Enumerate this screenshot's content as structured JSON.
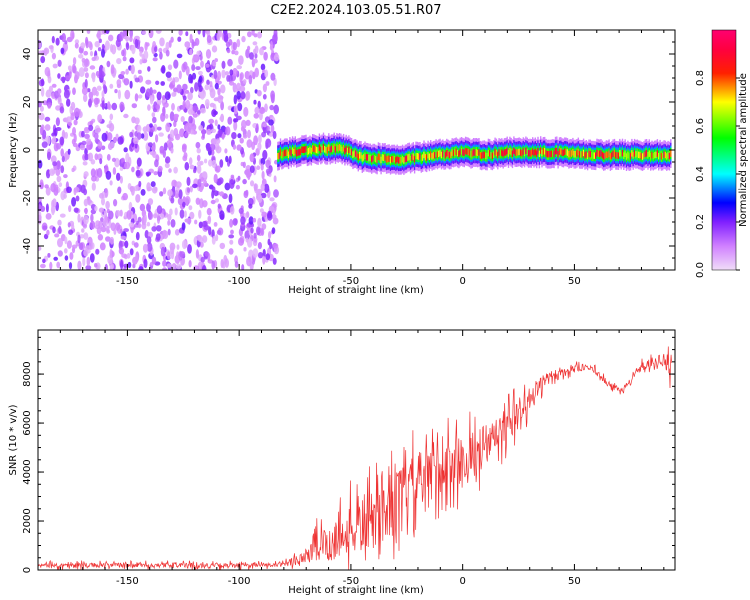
{
  "title": "C2E2.2024.103.05.51.R07",
  "chart_data": [
    {
      "type": "heatmap",
      "xlabel": "Height of straight line (km)",
      "ylabel": "Frequency (Hz)",
      "xlim": [
        -190,
        95
      ],
      "ylim": [
        -50,
        50
      ],
      "x_ticks": [
        -150,
        -100,
        -50,
        0,
        50
      ],
      "x_tick_labels": [
        "-150",
        "-100",
        "-50",
        "0",
        "50"
      ],
      "y_ticks": [
        -40,
        -20,
        0,
        20,
        40
      ],
      "y_tick_labels": [
        "-40",
        "-20",
        "0",
        "20",
        "40"
      ],
      "colorbar": {
        "label": "Normalized spectral amplitude",
        "range": [
          0,
          1
        ],
        "ticks": [
          0.0,
          0.2,
          0.4,
          0.6,
          0.8
        ],
        "tick_labels": [
          "0.0",
          "0.2",
          "0.4",
          "0.6",
          "0.8"
        ],
        "colors": [
          "#f0ddf8",
          "#a040ff",
          "#0000ff",
          "#00ffff",
          "#00ff00",
          "#ffff00",
          "#ff0000",
          "#ff0066"
        ]
      },
      "regions": [
        {
          "x_range": [
            -190,
            -83
          ],
          "freq_range": [
            -50,
            50
          ],
          "amplitude_range": [
            0.0,
            0.15
          ]
        },
        {
          "x_range": [
            -83,
            93
          ],
          "center_freq": [
            [
              -83,
              -2
            ],
            [
              -70,
              0
            ],
            [
              -55,
              1
            ],
            [
              -45,
              -3
            ],
            [
              -30,
              -4
            ],
            [
              -20,
              -3
            ],
            [
              -10,
              -2
            ],
            [
              0,
              -1
            ],
            [
              10,
              -2
            ],
            [
              20,
              -1
            ],
            [
              40,
              -1
            ],
            [
              60,
              -2
            ],
            [
              80,
              -2
            ],
            [
              93,
              -2
            ]
          ],
          "band_halfwidth_hz": 3,
          "amplitude_range": [
            0.3,
            0.95
          ]
        }
      ],
      "grid": false
    },
    {
      "type": "line",
      "xlabel": "Height of straight line (km)",
      "ylabel": "SNR (10 * v/v)",
      "xlim": [
        -190,
        95
      ],
      "ylim": [
        0,
        9800
      ],
      "x_ticks": [
        -150,
        -100,
        -50,
        0,
        50
      ],
      "x_tick_labels": [
        "-150",
        "-100",
        "-50",
        "0",
        "50"
      ],
      "y_ticks": [
        0,
        2000,
        4000,
        6000,
        8000
      ],
      "y_tick_labels": [
        "0",
        "2000",
        "4000",
        "6000",
        "8000"
      ],
      "color": "#ee3333",
      "series": [
        {
          "x": [
            -190,
            -170,
            -150,
            -130,
            -110,
            -90,
            -80,
            -75,
            -70,
            -65,
            -60,
            -55,
            -50,
            -45,
            -40,
            -35,
            -30,
            -25,
            -20,
            -15,
            -10,
            -5,
            0,
            5,
            10,
            15,
            20,
            25,
            30,
            35,
            40,
            45,
            50,
            55,
            60,
            65,
            70,
            75,
            80,
            85,
            90,
            93
          ],
          "y": [
            180,
            200,
            190,
            200,
            180,
            200,
            200,
            400,
            600,
            900,
            1100,
            1400,
            1600,
            1800,
            2000,
            2400,
            2800,
            3200,
            3600,
            3900,
            4200,
            4300,
            4400,
            4700,
            5100,
            5400,
            5800,
            6400,
            7000,
            7600,
            7900,
            8100,
            8200,
            8300,
            8100,
            7600,
            7300,
            7700,
            8300,
            8500,
            8600,
            8000
          ],
          "noise_amplitude": [
            120,
            120,
            120,
            120,
            120,
            120,
            120,
            250,
            500,
            800,
            1000,
            1200,
            1300,
            1400,
            1500,
            1500,
            1500,
            1500,
            1500,
            1400,
            1300,
            1300,
            1300,
            1200,
            1100,
            1000,
            900,
            800,
            600,
            400,
            300,
            250,
            200,
            150,
            150,
            150,
            150,
            150,
            200,
            250,
            300,
            1000
          ]
        }
      ],
      "grid": false
    }
  ]
}
